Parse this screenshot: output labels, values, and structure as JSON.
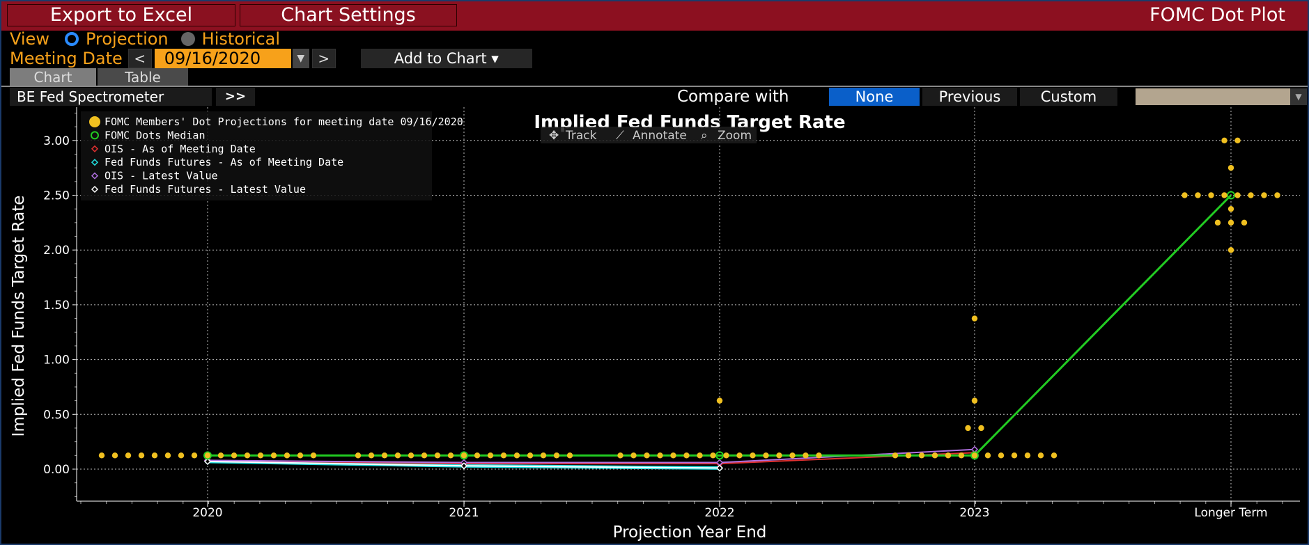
{
  "header": {
    "export_label": "Export to Excel",
    "settings_label": "Chart Settings",
    "title": "FOMC Dot Plot"
  },
  "view": {
    "label": "View",
    "projection_label": "Projection",
    "historical_label": "Historical",
    "selected": "Projection"
  },
  "meeting": {
    "label": "Meeting Date",
    "prev": "<",
    "date": "09/16/2020",
    "next": ">",
    "add_label": "Add to Chart ▾"
  },
  "tabs": [
    {
      "label": "Chart",
      "active": true
    },
    {
      "label": "Table",
      "active": false
    }
  ],
  "toolbar": {
    "spectrometer_label": "BE Fed Spectrometer",
    "expand_label": ">>",
    "compare_label": "Compare with",
    "compare_options": [
      "None",
      "Previous",
      "Custom"
    ],
    "compare_selected": "None"
  },
  "chart_tools": {
    "track": "Track",
    "annotate": "Annotate",
    "zoom": "Zoom"
  },
  "colors": {
    "header": "#8c1020",
    "accent_orange": "#f7a11a",
    "dots": "#f0c020",
    "median": "#22cc22",
    "ois_meeting": "#e03030",
    "ff_meeting": "#20e0e0",
    "ois_latest": "#b070e0",
    "ff_latest": "#ffffff",
    "selected_blue": "#0a5fc9"
  },
  "chart_data": {
    "type": "scatter",
    "title": "Implied Fed Funds Target Rate",
    "xlabel": "Projection Year End",
    "ylabel": "Implied Fed Funds Target Rate",
    "categories": [
      "2020",
      "2021",
      "2022",
      "2023",
      "Longer Term"
    ],
    "yticks": [
      "0.00",
      "0.50",
      "1.00",
      "1.50",
      "2.00",
      "2.50",
      "3.00"
    ],
    "ylim": [
      -0.25,
      3.25
    ],
    "grid": true,
    "legend_position": "top-left",
    "legend": [
      "FOMC Members' Dot Projections for meeting date 09/16/2020",
      "FOMC Dots Median",
      "OIS - As of Meeting Date",
      "Fed Funds Futures - As of Meeting Date",
      "OIS - Latest Value",
      "Fed Funds Futures - Latest Value"
    ],
    "dot_projections": [
      {
        "category": "2020",
        "values": [
          {
            "value": 0.125,
            "count": 17
          }
        ]
      },
      {
        "category": "2021",
        "values": [
          {
            "value": 0.125,
            "count": 17
          }
        ]
      },
      {
        "category": "2022",
        "values": [
          {
            "value": 0.125,
            "count": 16
          },
          {
            "value": 0.625,
            "count": 1
          }
        ]
      },
      {
        "category": "2023",
        "values": [
          {
            "value": 0.125,
            "count": 13
          },
          {
            "value": 0.375,
            "count": 2
          },
          {
            "value": 0.625,
            "count": 1
          },
          {
            "value": 1.375,
            "count": 1
          }
        ]
      },
      {
        "category": "Longer Term",
        "values": [
          {
            "value": 2.0,
            "count": 1
          },
          {
            "value": 2.25,
            "count": 3
          },
          {
            "value": 2.375,
            "count": 1
          },
          {
            "value": 2.5,
            "count": 8
          },
          {
            "value": 2.75,
            "count": 1
          },
          {
            "value": 3.0,
            "count": 2
          }
        ]
      }
    ],
    "series": [
      {
        "name": "FOMC Dots Median",
        "values": [
          0.125,
          0.125,
          0.125,
          0.125,
          2.5
        ]
      },
      {
        "name": "OIS - As of Meeting Date",
        "values": [
          0.08,
          0.05,
          0.05,
          0.15,
          null
        ]
      },
      {
        "name": "Fed Funds Futures - As of Meeting Date",
        "values": [
          0.07,
          0.03,
          0.01,
          null,
          null
        ]
      },
      {
        "name": "OIS - Latest Value",
        "values": [
          0.08,
          0.06,
          0.06,
          0.18,
          null
        ]
      },
      {
        "name": "Fed Funds Futures - Latest Value",
        "values": [
          0.07,
          0.03,
          0.01,
          null,
          null
        ]
      }
    ]
  }
}
